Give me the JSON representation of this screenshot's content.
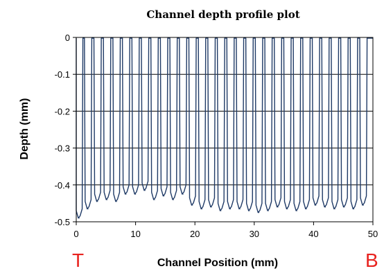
{
  "chart_data": {
    "type": "line",
    "title": "Channel depth profile plot",
    "xlabel": "Channel Position (mm)",
    "ylabel": "Depth (mm)",
    "xlim": [
      0,
      50
    ],
    "ylim": [
      -0.5,
      0
    ],
    "x_ticks": [
      "0",
      "10",
      "20",
      "30",
      "40",
      "50"
    ],
    "y_ticks": [
      "0",
      "-0.1",
      "-0.2",
      "-0.3",
      "-0.4",
      "-0.5"
    ],
    "grid": "horizontal",
    "legend": "none",
    "series_color": "#1f3a66",
    "end_labels": {
      "left": "T",
      "right": "B"
    },
    "series": [
      {
        "channel_centers_mm": [
          0.5,
          2.0,
          3.6,
          5.2,
          6.8,
          8.4,
          10.0,
          11.6,
          13.2,
          14.8,
          16.4,
          18.0,
          19.6,
          21.2,
          22.8,
          24.4,
          26.0,
          27.6,
          29.2,
          30.8,
          32.4,
          34.0,
          35.6,
          37.2,
          38.8,
          40.4,
          42.0,
          43.6,
          45.2,
          46.8,
          48.4
        ],
        "channel_floor_depth_mm": [
          -0.49,
          -0.465,
          -0.445,
          -0.44,
          -0.445,
          -0.425,
          -0.425,
          -0.415,
          -0.44,
          -0.43,
          -0.44,
          -0.425,
          -0.455,
          -0.465,
          -0.46,
          -0.47,
          -0.465,
          -0.465,
          -0.47,
          -0.475,
          -0.47,
          -0.46,
          -0.465,
          -0.47,
          -0.465,
          -0.455,
          -0.46,
          -0.465,
          -0.46,
          -0.465,
          -0.455
        ]
      }
    ]
  }
}
